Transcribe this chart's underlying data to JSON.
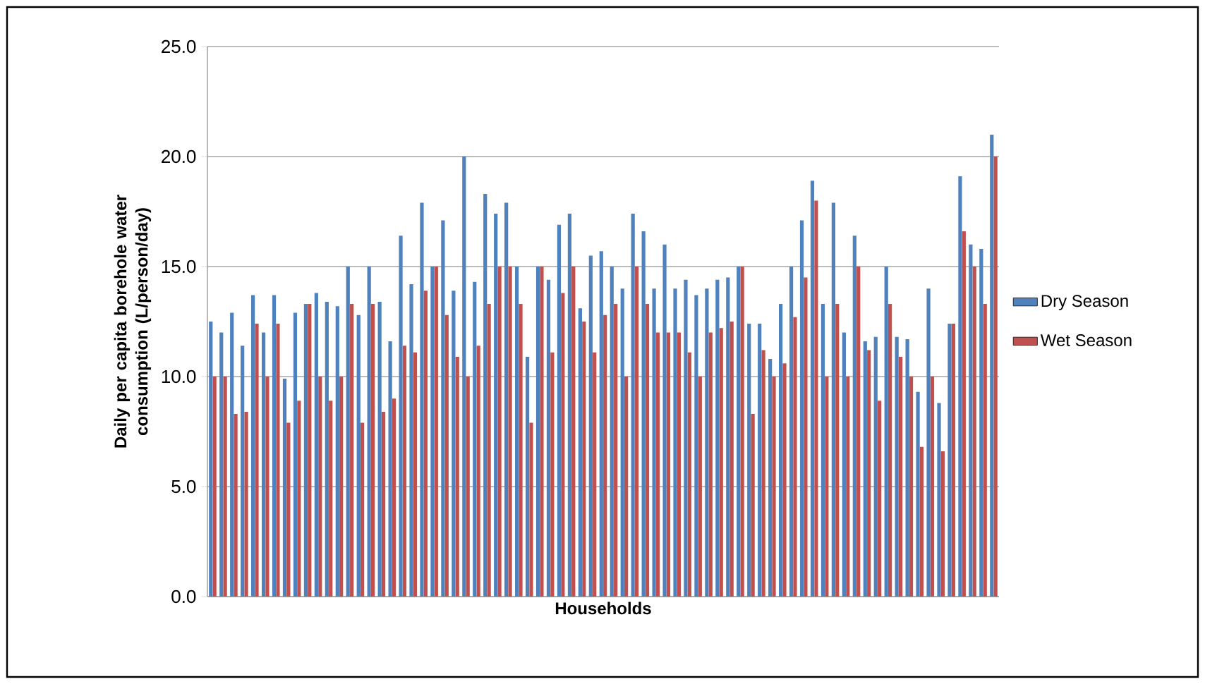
{
  "chart_data": {
    "type": "bar",
    "xlabel": "Households",
    "ylabel": "Daily per capita borehole water consumption (L/person/day)",
    "categories": [
      null,
      null,
      null,
      null,
      null,
      null,
      null,
      null,
      null,
      null,
      null,
      null,
      null,
      null,
      null,
      null,
      null,
      null,
      null,
      null,
      null,
      null,
      null,
      null,
      null,
      null,
      null,
      null,
      null,
      null,
      null,
      null,
      null,
      null,
      null,
      null,
      null,
      null,
      null,
      null,
      null,
      null,
      null,
      null,
      null,
      null,
      null,
      null,
      null,
      null,
      null,
      null,
      null,
      null,
      null,
      null,
      null,
      null,
      null,
      null,
      null,
      null,
      null,
      null,
      null,
      null,
      null,
      null,
      null,
      null,
      null,
      null,
      null,
      null,
      null
    ],
    "series": [
      {
        "name": "Dry Season",
        "color": "#4f81bd",
        "values": [
          12.5,
          12.0,
          12.9,
          11.4,
          13.7,
          12.0,
          13.7,
          9.9,
          12.9,
          13.3,
          13.8,
          13.4,
          13.2,
          15.0,
          12.8,
          15.0,
          13.4,
          11.6,
          16.4,
          14.2,
          17.9,
          15.0,
          17.1,
          13.9,
          20.0,
          14.3,
          18.3,
          17.4,
          17.9,
          15.0,
          10.9,
          15.0,
          14.4,
          16.9,
          17.4,
          13.1,
          15.5,
          15.7,
          15.0,
          14.0,
          17.4,
          16.6,
          14.0,
          16.0,
          14.0,
          14.4,
          13.7,
          14.0,
          14.4,
          14.5,
          15.0,
          12.4,
          12.4,
          10.8,
          13.3,
          15.0,
          17.1,
          18.9,
          13.3,
          17.9,
          12.0,
          16.4,
          11.6,
          11.8,
          15.0,
          11.8,
          11.7,
          9.3,
          14.0,
          8.8,
          12.4,
          19.1,
          16.0,
          15.8,
          21.0
        ]
      },
      {
        "name": "Wet Season",
        "color": "#c0504d",
        "values": [
          10.0,
          10.0,
          8.3,
          8.4,
          12.4,
          10.0,
          12.4,
          7.9,
          8.9,
          13.3,
          10.0,
          8.9,
          10.0,
          13.3,
          7.9,
          13.3,
          8.4,
          9.0,
          11.4,
          11.1,
          13.9,
          15.0,
          12.8,
          10.9,
          10.0,
          11.4,
          13.3,
          15.0,
          15.0,
          13.3,
          7.9,
          15.0,
          11.1,
          13.8,
          15.0,
          12.5,
          11.1,
          12.8,
          13.3,
          10.0,
          15.0,
          13.3,
          12.0,
          12.0,
          12.0,
          11.1,
          10.0,
          12.0,
          12.2,
          12.5,
          15.0,
          8.3,
          11.2,
          10.0,
          10.6,
          12.7,
          14.5,
          18.0,
          10.0,
          13.3,
          10.0,
          15.0,
          11.2,
          8.9,
          13.3,
          10.9,
          10.0,
          6.8,
          10.0,
          6.6,
          12.4,
          16.6,
          15.0,
          13.3,
          20.0
        ]
      }
    ],
    "ylim": [
      0,
      25
    ],
    "yticks": [
      {
        "value": 0,
        "label": "0.0"
      },
      {
        "value": 5,
        "label": "5.0"
      },
      {
        "value": 10,
        "label": "10.0"
      },
      {
        "value": 15,
        "label": "15.0"
      },
      {
        "value": 20,
        "label": "20.0"
      },
      {
        "value": 25,
        "label": "25.0"
      }
    ],
    "grid": "y",
    "legend": "right",
    "tick_labels": "y"
  }
}
